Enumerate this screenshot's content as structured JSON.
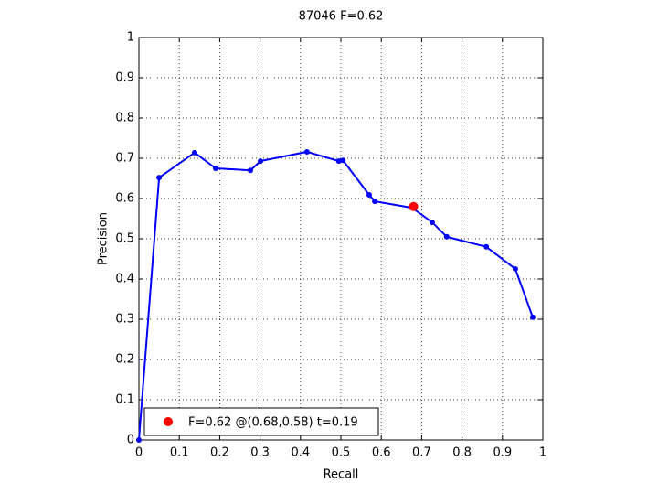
{
  "chart_data": {
    "type": "line",
    "title": "87046 F=0.62",
    "xlabel": "Recall",
    "ylabel": "Precision",
    "xlim": [
      0,
      1
    ],
    "ylim": [
      0,
      1
    ],
    "xticks": [
      0,
      0.1,
      0.2,
      0.3,
      0.4,
      0.5,
      0.6,
      0.7,
      0.8,
      0.9,
      1
    ],
    "yticks": [
      0,
      0.1,
      0.2,
      0.3,
      0.4,
      0.5,
      0.6,
      0.7,
      0.8,
      0.9,
      1
    ],
    "grid": true,
    "legend": "lower left",
    "series": [
      {
        "color": "#0000ff",
        "x": [
          0,
          0.05,
          0.138,
          0.19,
          0.276,
          0.301,
          0.416,
          0.495,
          0.505,
          0.57,
          0.584,
          0.676,
          0.726,
          0.762,
          0.86,
          0.932,
          0.975
        ],
        "values": [
          0,
          0.652,
          0.714,
          0.675,
          0.67,
          0.693,
          0.716,
          0.693,
          0.695,
          0.609,
          0.593,
          0.577,
          0.541,
          0.505,
          0.48,
          0.425,
          0.305
        ]
      },
      {
        "name": "F=0.62 @(0.68,0.58) t=0.19",
        "color": "#ff0000",
        "x": [
          0.68
        ],
        "values": [
          0.58
        ]
      }
    ]
  }
}
